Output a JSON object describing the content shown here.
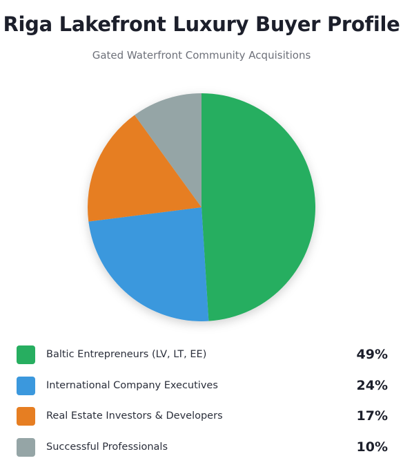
{
  "chart_data": {
    "type": "pie",
    "title": "Riga Lakefront Luxury Buyer Profile",
    "subtitle": "Gated Waterfront Community Acquisitions",
    "categories": [
      "Baltic Entrepreneurs (LV, LT, EE)",
      "International Company Executives",
      "Real Estate Investors & Developers",
      "Successful Professionals"
    ],
    "values": [
      49,
      24,
      17,
      10
    ],
    "value_labels": [
      "49%",
      "24%",
      "17%",
      "10%"
    ],
    "colors": [
      "#27ae60",
      "#3b98dd",
      "#e67e22",
      "#95a5a6"
    ],
    "legend_position": "bottom"
  }
}
